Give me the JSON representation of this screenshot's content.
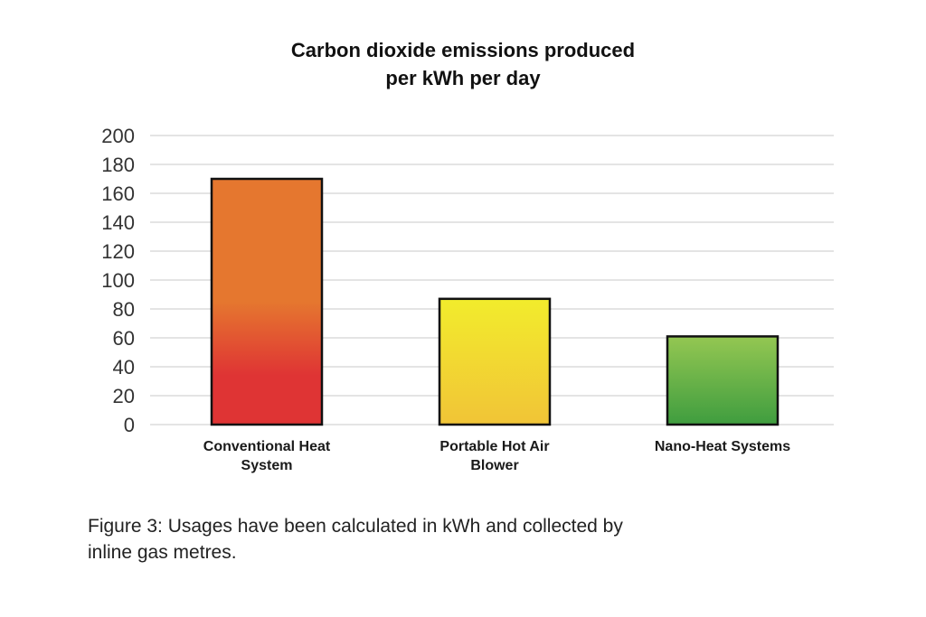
{
  "chart_data": {
    "type": "bar",
    "title_lines": [
      "Carbon dioxide emissions produced",
      "per kWh per day"
    ],
    "categories": [
      [
        "Conventional Heat",
        "System"
      ],
      [
        "Portable Hot Air",
        "Blower"
      ],
      [
        "Nano-Heat Systems"
      ]
    ],
    "values": [
      170,
      87,
      61
    ],
    "ylim": [
      0,
      200
    ],
    "yticks": [
      "0",
      "20",
      "40",
      "60",
      "80",
      "100",
      "120",
      "140",
      "160",
      "180",
      "200"
    ],
    "grid": true,
    "bar_colors": [
      {
        "top": "#e5772f",
        "bottom": "#df3434"
      },
      {
        "top": "#f2ec2c",
        "bottom": "#f1c437"
      },
      {
        "top": "#94c752",
        "bottom": "#3f9d3f"
      }
    ]
  },
  "caption": {
    "line1": "Figure 3: Usages have been calculated in kWh and collected by",
    "line2": "inline gas metres."
  }
}
